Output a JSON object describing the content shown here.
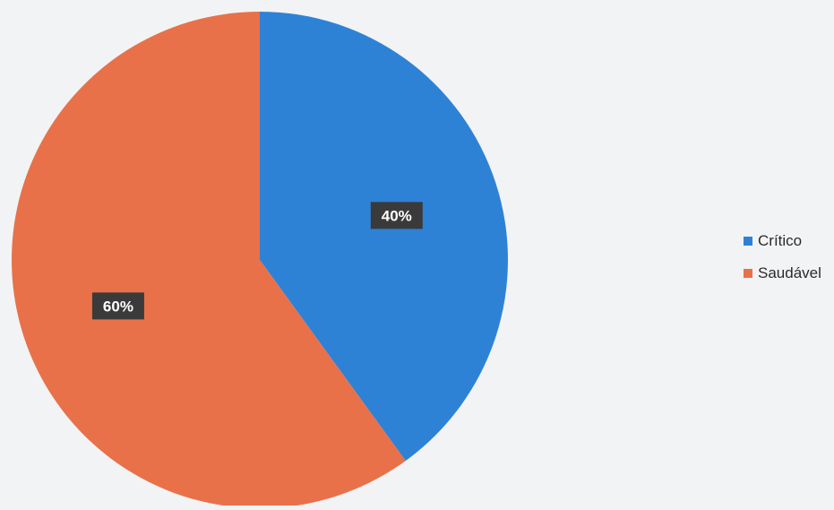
{
  "chart_data": {
    "type": "pie",
    "categories": [
      "Crítico",
      "Saudável"
    ],
    "values": [
      40,
      60
    ],
    "labels": [
      "40%",
      "60%"
    ],
    "colors": [
      "#2e82d6",
      "#e8714a"
    ],
    "legend_position": "right"
  }
}
